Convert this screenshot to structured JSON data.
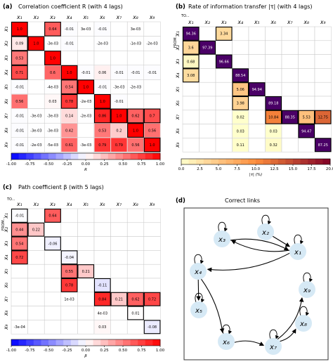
{
  "panels": {
    "a": {
      "letter": "(a)",
      "title": "Correlation coefficient R (with 4 lags)"
    },
    "b": {
      "letter": "(b)",
      "title": "Rate of information transfer |τ| (with 4 lags)",
      "to_label": "TO...",
      "from_label": "FROM..."
    },
    "c": {
      "letter": "(c)",
      "title": "Path coefficient β (with 5 lags)",
      "to_label": "TO...",
      "from_label": "FROM..."
    },
    "d": {
      "letter": "(d)",
      "title": "Correct links"
    }
  },
  "variables": [
    "x1",
    "x2",
    "x3",
    "x4",
    "x5",
    "x6",
    "x7",
    "x8",
    "x9"
  ],
  "colors": {
    "neg_max": "#0000ff",
    "zero": "#ffffff",
    "pos_max": "#ff0000",
    "tau_low": "#ffffcc",
    "tau_mid": "#fd8d3c",
    "tau_high": "#800026",
    "tau_top": "#4a0066",
    "node": "#d6e9f5"
  },
  "chart_data": [
    {
      "id": "a",
      "type": "heatmap",
      "title": "Correlation coefficient R (with 4 lags)",
      "colorbar_label": "R",
      "colorbar_ticks": [
        "-1.00",
        "-0.75",
        "-0.50",
        "-0.25",
        "0.00",
        "0.25",
        "0.50",
        "0.75",
        "1.00"
      ],
      "vmin": -1,
      "vmax": 1,
      "rows": [
        "x1",
        "x2",
        "x3",
        "x4",
        "x5",
        "x6",
        "x7",
        "x8",
        "x9"
      ],
      "cols": [
        "x1",
        "x2",
        "x3",
        "x4",
        "x5",
        "x6",
        "x7",
        "x8",
        "x9"
      ],
      "cells": [
        {
          "r": 0,
          "c": 0,
          "t": "1.0",
          "v": 1.0,
          "b": 1
        },
        {
          "r": 0,
          "c": 2,
          "t": "0.64",
          "v": 0.64,
          "b": 1
        },
        {
          "r": 0,
          "c": 3,
          "t": "-0.01",
          "v": -0.01
        },
        {
          "r": 0,
          "c": 4,
          "t": "3e-03",
          "v": 0.003
        },
        {
          "r": 0,
          "c": 5,
          "t": "-0.01",
          "v": -0.01
        },
        {
          "r": 0,
          "c": 7,
          "t": "3e-03",
          "v": 0.003
        },
        {
          "r": 1,
          "c": 0,
          "t": "0.09",
          "v": 0.09,
          "b": 1
        },
        {
          "r": 1,
          "c": 1,
          "t": "1.0",
          "v": 1.0,
          "b": 1
        },
        {
          "r": 1,
          "c": 2,
          "t": "-3e-03",
          "v": -0.003
        },
        {
          "r": 1,
          "c": 3,
          "t": "-0.01",
          "v": -0.01
        },
        {
          "r": 1,
          "c": 5,
          "t": "-2e-03",
          "v": -0.002
        },
        {
          "r": 1,
          "c": 7,
          "t": "-1e-03",
          "v": -0.001
        },
        {
          "r": 1,
          "c": 8,
          "t": "-2e-03",
          "v": -0.002
        },
        {
          "r": 2,
          "c": 0,
          "t": "0.53",
          "v": 0.53,
          "b": 1
        },
        {
          "r": 2,
          "c": 2,
          "t": "1.0",
          "v": 1.0,
          "b": 1
        },
        {
          "r": 3,
          "c": 0,
          "t": "0.71",
          "v": 0.71,
          "b": 1
        },
        {
          "r": 3,
          "c": 2,
          "t": "0.6",
          "v": 0.6
        },
        {
          "r": 3,
          "c": 3,
          "t": "1.0",
          "v": 1.0,
          "b": 1
        },
        {
          "r": 3,
          "c": 4,
          "t": "-0.01",
          "v": -0.01
        },
        {
          "r": 3,
          "c": 5,
          "t": "0.06",
          "v": 0.06
        },
        {
          "r": 3,
          "c": 6,
          "t": "-0.01",
          "v": -0.01
        },
        {
          "r": 3,
          "c": 7,
          "t": "-0.01",
          "v": -0.01
        },
        {
          "r": 3,
          "c": 8,
          "t": "-0.01",
          "v": -0.01
        },
        {
          "r": 4,
          "c": 0,
          "t": "-0.01",
          "v": -0.01
        },
        {
          "r": 4,
          "c": 2,
          "t": "-4e-03",
          "v": -0.004
        },
        {
          "r": 4,
          "c": 3,
          "t": "0.54",
          "v": 0.54,
          "b": 1
        },
        {
          "r": 4,
          "c": 4,
          "t": "1.0",
          "v": 1.0,
          "b": 1
        },
        {
          "r": 4,
          "c": 5,
          "t": "-0.01",
          "v": -0.01
        },
        {
          "r": 4,
          "c": 6,
          "t": "-3e-03",
          "v": -0.003
        },
        {
          "r": 4,
          "c": 7,
          "t": "-2e-03",
          "v": -0.002
        },
        {
          "r": 5,
          "c": 0,
          "t": "0.56",
          "v": 0.56
        },
        {
          "r": 5,
          "c": 2,
          "t": "0.03",
          "v": 0.03
        },
        {
          "r": 5,
          "c": 3,
          "t": "0.78",
          "v": 0.78,
          "b": 1
        },
        {
          "r": 5,
          "c": 4,
          "t": "-2e-03",
          "v": -0.002
        },
        {
          "r": 5,
          "c": 5,
          "t": "1.0",
          "v": 1.0,
          "b": 1
        },
        {
          "r": 5,
          "c": 6,
          "t": "-0.01",
          "v": -0.01
        },
        {
          "r": 6,
          "c": 0,
          "t": "-0.01",
          "v": -0.01
        },
        {
          "r": 6,
          "c": 1,
          "t": "-3e-03",
          "v": -0.003
        },
        {
          "r": 6,
          "c": 2,
          "t": "-3e-03",
          "v": -0.003
        },
        {
          "r": 6,
          "c": 3,
          "t": "0.14",
          "v": 0.14
        },
        {
          "r": 6,
          "c": 4,
          "t": "-2e-03",
          "v": -0.002
        },
        {
          "r": 6,
          "c": 5,
          "t": "0.86",
          "v": 0.86,
          "b": 1
        },
        {
          "r": 6,
          "c": 6,
          "t": "1.0",
          "v": 1.0,
          "b": 1
        },
        {
          "r": 6,
          "c": 7,
          "t": "0.62",
          "v": 0.62,
          "b": 1
        },
        {
          "r": 6,
          "c": 8,
          "t": "0.7",
          "v": 0.7,
          "b": 1
        },
        {
          "r": 7,
          "c": 0,
          "t": "-0.01",
          "v": -0.01
        },
        {
          "r": 7,
          "c": 1,
          "t": "-3e-03",
          "v": -0.003
        },
        {
          "r": 7,
          "c": 2,
          "t": "-3e-03",
          "v": -0.003
        },
        {
          "r": 7,
          "c": 3,
          "t": "0.42",
          "v": 0.42
        },
        {
          "r": 7,
          "c": 5,
          "t": "0.53",
          "v": 0.53
        },
        {
          "r": 7,
          "c": 6,
          "t": "0.2",
          "v": 0.2
        },
        {
          "r": 7,
          "c": 7,
          "t": "1.0",
          "v": 1.0,
          "b": 1
        },
        {
          "r": 7,
          "c": 8,
          "t": "0.56",
          "v": 0.56
        },
        {
          "r": 8,
          "c": 0,
          "t": "-0.01",
          "v": -0.01
        },
        {
          "r": 8,
          "c": 1,
          "t": "-2e-03",
          "v": -0.002
        },
        {
          "r": 8,
          "c": 2,
          "t": "-5e-03",
          "v": -0.005
        },
        {
          "r": 8,
          "c": 3,
          "t": "0.61",
          "v": 0.61
        },
        {
          "r": 8,
          "c": 4,
          "t": "-3e-03",
          "v": -0.003
        },
        {
          "r": 8,
          "c": 5,
          "t": "0.79",
          "v": 0.79
        },
        {
          "r": 8,
          "c": 6,
          "t": "0.79",
          "v": 0.79
        },
        {
          "r": 8,
          "c": 7,
          "t": "0.56",
          "v": 0.56
        },
        {
          "r": 8,
          "c": 8,
          "t": "1.0",
          "v": 1.0,
          "b": 1
        }
      ]
    },
    {
      "id": "b",
      "type": "heatmap",
      "title": "Rate of information transfer |τ| (with 4 lags)",
      "colorbar_label": "|τ| (%)",
      "colorbar_ticks": [
        "0.0",
        "2.5",
        "5.0",
        "7.5",
        "10.0",
        "12.5",
        "15.0",
        "17.5",
        "20.0"
      ],
      "vmin": 0,
      "vmax": 20,
      "rows": [
        "x1",
        "x2",
        "x3",
        "x4",
        "x5",
        "x6",
        "x7",
        "x8",
        "x9"
      ],
      "cols": [
        "x1",
        "x2",
        "x3",
        "x4",
        "x5",
        "x6",
        "x7",
        "x8",
        "x9"
      ],
      "cells": [
        {
          "r": 0,
          "c": 0,
          "t": "94.36",
          "v": 94.36,
          "b": 1
        },
        {
          "r": 0,
          "c": 2,
          "t": "3.34",
          "v": 3.34,
          "b": 1
        },
        {
          "r": 1,
          "c": 0,
          "t": "3.6",
          "v": 3.6,
          "b": 1
        },
        {
          "r": 1,
          "c": 1,
          "t": "97.39",
          "v": 97.39,
          "b": 1
        },
        {
          "r": 2,
          "c": 0,
          "t": "0.68",
          "v": 0.68,
          "b": 1
        },
        {
          "r": 2,
          "c": 2,
          "t": "96.66",
          "v": 96.66,
          "b": 1
        },
        {
          "r": 3,
          "c": 0,
          "t": "3.08",
          "v": 3.08,
          "b": 1
        },
        {
          "r": 3,
          "c": 3,
          "t": "88.54",
          "v": 88.54,
          "b": 1
        },
        {
          "r": 4,
          "c": 3,
          "t": "5.06",
          "v": 5.06,
          "b": 1
        },
        {
          "r": 4,
          "c": 4,
          "t": "94.94",
          "v": 94.94,
          "b": 1
        },
        {
          "r": 5,
          "c": 3,
          "t": "3.98",
          "v": 3.98,
          "b": 1
        },
        {
          "r": 5,
          "c": 5,
          "t": "89.18",
          "v": 89.18,
          "b": 1
        },
        {
          "r": 6,
          "c": 3,
          "t": "0.02",
          "v": 0.02
        },
        {
          "r": 6,
          "c": 5,
          "t": "10.84",
          "v": 10.84,
          "b": 1
        },
        {
          "r": 6,
          "c": 6,
          "t": "88.35",
          "v": 88.35,
          "b": 1
        },
        {
          "r": 6,
          "c": 7,
          "t": "5.53",
          "v": 5.53,
          "b": 1
        },
        {
          "r": 6,
          "c": 8,
          "t": "12.75",
          "v": 12.75,
          "b": 1
        },
        {
          "r": 7,
          "c": 3,
          "t": "0.03",
          "v": 0.03
        },
        {
          "r": 7,
          "c": 5,
          "t": "0.03",
          "v": 0.03
        },
        {
          "r": 7,
          "c": 7,
          "t": "94.47",
          "v": 94.47,
          "b": 1
        },
        {
          "r": 8,
          "c": 3,
          "t": "0.11",
          "v": 0.11
        },
        {
          "r": 8,
          "c": 5,
          "t": "0.32",
          "v": 0.32
        },
        {
          "r": 8,
          "c": 8,
          "t": "87.25",
          "v": 87.25,
          "b": 1
        }
      ]
    },
    {
      "id": "c",
      "type": "heatmap",
      "title": "Path coefficient β (with 5 lags)",
      "colorbar_label": "β",
      "colorbar_ticks": [
        "-1.00",
        "-0.75",
        "-0.50",
        "-0.25",
        "0.00",
        "0.25",
        "0.50",
        "0.75",
        "1.00"
      ],
      "vmin": -1,
      "vmax": 1,
      "rows": [
        "x1",
        "x2",
        "x3",
        "x4",
        "x5",
        "x6",
        "x7",
        "x8",
        "x9"
      ],
      "cols": [
        "x1",
        "x2",
        "x3",
        "x4",
        "x5",
        "x6",
        "x7",
        "x8",
        "x9"
      ],
      "cells": [
        {
          "r": 0,
          "c": 0,
          "t": "-0.01",
          "v": -0.01,
          "b": 1
        },
        {
          "r": 0,
          "c": 2,
          "t": "0.64",
          "v": 0.64,
          "b": 1
        },
        {
          "r": 1,
          "c": 0,
          "t": "0.44",
          "v": 0.44,
          "b": 1
        },
        {
          "r": 1,
          "c": 1,
          "t": "0.22",
          "v": 0.22,
          "b": 1
        },
        {
          "r": 2,
          "c": 0,
          "t": "0.54",
          "v": 0.54,
          "b": 1
        },
        {
          "r": 2,
          "c": 2,
          "t": "-0.06",
          "v": -0.06,
          "b": 1
        },
        {
          "r": 3,
          "c": 0,
          "t": "0.72",
          "v": 0.72,
          "b": 1
        },
        {
          "r": 3,
          "c": 3,
          "t": "-0.04",
          "v": -0.04,
          "b": 1
        },
        {
          "r": 4,
          "c": 3,
          "t": "0.55",
          "v": 0.55,
          "b": 1
        },
        {
          "r": 4,
          "c": 4,
          "t": "0.21",
          "v": 0.21,
          "b": 1
        },
        {
          "r": 5,
          "c": 3,
          "t": "0.78",
          "v": 0.78,
          "b": 1
        },
        {
          "r": 5,
          "c": 5,
          "t": "-0.11",
          "v": -0.11,
          "b": 1
        },
        {
          "r": 6,
          "c": 3,
          "t": "1e-03",
          "v": 0.001
        },
        {
          "r": 6,
          "c": 5,
          "t": "0.84",
          "v": 0.84,
          "b": 1
        },
        {
          "r": 6,
          "c": 6,
          "t": "0.21",
          "v": 0.21,
          "b": 1
        },
        {
          "r": 6,
          "c": 7,
          "t": "0.62",
          "v": 0.62,
          "b": 1
        },
        {
          "r": 6,
          "c": 8,
          "t": "0.72",
          "v": 0.72,
          "b": 1
        },
        {
          "r": 7,
          "c": 5,
          "t": "4e-03",
          "v": 0.004
        },
        {
          "r": 7,
          "c": 7,
          "t": "0.01",
          "v": 0.01,
          "b": 1
        },
        {
          "r": 8,
          "c": 0,
          "t": "-3e-04",
          "v": -0.0003
        },
        {
          "r": 8,
          "c": 5,
          "t": "0.03",
          "v": 0.03
        },
        {
          "r": 8,
          "c": 8,
          "t": "-0.08",
          "v": -0.08,
          "b": 1
        }
      ]
    },
    {
      "id": "d",
      "type": "diagram",
      "title": "Correct links",
      "nodes": [
        "x1",
        "x2",
        "x3",
        "x4",
        "x5",
        "x6",
        "x7",
        "x8",
        "x9"
      ],
      "self_loops": [
        "x1",
        "x2",
        "x3",
        "x4",
        "x5",
        "x6",
        "x7",
        "x8",
        "x9"
      ],
      "edges": [
        [
          "x3",
          "x1"
        ],
        [
          "x1",
          "x3"
        ],
        [
          "x2",
          "x1"
        ],
        [
          "x1",
          "x4"
        ],
        [
          "x4",
          "x5"
        ],
        [
          "x4",
          "x6"
        ],
        [
          "x6",
          "x7"
        ],
        [
          "x7",
          "x8"
        ],
        [
          "x7",
          "x9"
        ]
      ]
    }
  ]
}
